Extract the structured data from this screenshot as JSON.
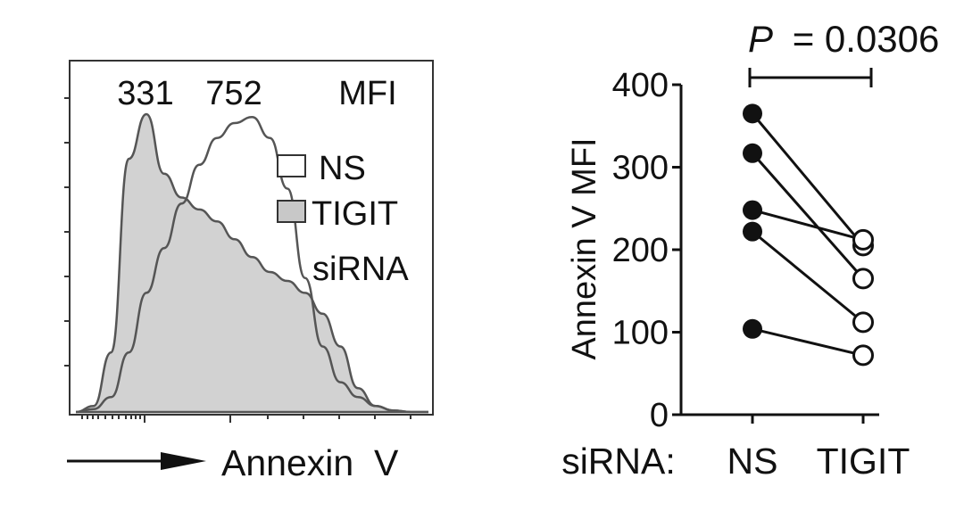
{
  "chart_data": [
    {
      "type": "histogram",
      "title": "",
      "panel": "flow-cytometry-histogram",
      "mfi_header": "MFI",
      "xlabel": "Annexin  V",
      "x_scale": "log",
      "mfi_values": [
        "331",
        "752"
      ],
      "legend": {
        "placement": "top-right",
        "entries": [
          {
            "label": "NS",
            "fill": "#ffffff"
          },
          {
            "label": "TIGIT",
            "fill": "#c8c8c8"
          },
          {
            "label": "siRNA",
            "fill": null
          }
        ]
      },
      "series": [
        {
          "name": "TIGIT siRNA",
          "fill": "#d2d2d2",
          "stroke": "#555555",
          "x": [
            0.0,
            0.05,
            0.1,
            0.15,
            0.2,
            0.25,
            0.3,
            0.35,
            0.4,
            0.45,
            0.5,
            0.55,
            0.6,
            0.65,
            0.7,
            0.75,
            0.8,
            0.85,
            0.9,
            0.95,
            1.0
          ],
          "y": [
            0,
            0.02,
            0.2,
            0.85,
            1.0,
            0.8,
            0.72,
            0.68,
            0.64,
            0.58,
            0.52,
            0.47,
            0.44,
            0.4,
            0.33,
            0.22,
            0.08,
            0.02,
            0.005,
            0,
            0
          ]
        },
        {
          "name": "NS",
          "fill": "none",
          "stroke": "#555555",
          "x": [
            0.0,
            0.05,
            0.1,
            0.15,
            0.2,
            0.25,
            0.3,
            0.35,
            0.4,
            0.45,
            0.5,
            0.55,
            0.6,
            0.65,
            0.7,
            0.75,
            0.8,
            0.85,
            0.9,
            0.95,
            1.0
          ],
          "y": [
            0,
            0.01,
            0.05,
            0.2,
            0.4,
            0.55,
            0.7,
            0.83,
            0.92,
            0.97,
            0.99,
            0.92,
            0.75,
            0.45,
            0.22,
            0.1,
            0.05,
            0.02,
            0.005,
            0,
            0
          ]
        }
      ]
    },
    {
      "type": "scatter",
      "title": "",
      "panel": "paired-dot-plot",
      "ylabel": "Annexin V MFI",
      "xlabel": "siRNA:",
      "categories": [
        "NS",
        "TIGIT"
      ],
      "ylim": [
        0,
        400
      ],
      "yticks": [
        "0",
        "100",
        "200",
        "300",
        "400"
      ],
      "annotation": {
        "p_label": "P",
        "p_text": "= 0.0306"
      },
      "pairs": [
        {
          "NS": 365,
          "TIGIT": 205
        },
        {
          "NS": 317,
          "TIGIT": 165
        },
        {
          "NS": 248,
          "TIGIT": 212
        },
        {
          "NS": 222,
          "TIGIT": 112
        },
        {
          "NS": 104,
          "TIGIT": 72
        }
      ],
      "series": [
        {
          "name": "NS",
          "marker": "filled-circle",
          "values": [
            365,
            317,
            248,
            222,
            104
          ]
        },
        {
          "name": "TIGIT",
          "marker": "open-circle",
          "values": [
            205,
            165,
            212,
            112,
            72
          ]
        }
      ]
    }
  ]
}
